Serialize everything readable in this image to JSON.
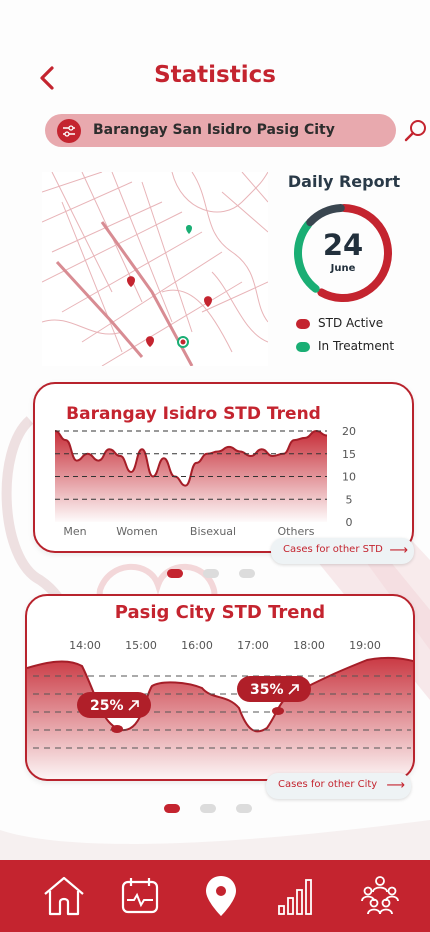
{
  "header": {
    "title": "Statistics"
  },
  "search": {
    "location": "Barangay San Isidro Pasig City"
  },
  "daily_report": {
    "title": "Daily Report",
    "day": "24",
    "month": "June",
    "std_active_fraction": 0.58,
    "legend": [
      {
        "label": "STD Active",
        "color": "#c4242f"
      },
      {
        "label": "In Treatment",
        "color": "#1aae74"
      }
    ]
  },
  "cards": {
    "barangay": {
      "title": "Barangay Isidro STD Trend",
      "categories": [
        "Men",
        "Women",
        "Bisexual",
        "Others"
      ],
      "more_label": "Cases for other STD"
    },
    "city": {
      "title": "Pasig City STD Trend",
      "more_label": "Cases for other City",
      "badges": [
        {
          "text": "25%",
          "at": "15:00"
        },
        {
          "text": "35%",
          "at": "17:30"
        }
      ]
    }
  },
  "chart_data": [
    {
      "type": "area",
      "title": "Barangay Isidro STD Trend",
      "categories": [
        "Men",
        "Women",
        "Bisexual",
        "Others"
      ],
      "yticks": [
        0,
        5,
        10,
        15,
        20
      ],
      "ylim": [
        0,
        20
      ],
      "x": [
        0,
        0.04,
        0.08,
        0.12,
        0.16,
        0.2,
        0.24,
        0.28,
        0.32,
        0.36,
        0.4,
        0.44,
        0.48,
        0.52,
        0.56,
        0.6,
        0.64,
        0.68,
        0.72,
        0.76,
        0.8,
        0.84,
        0.88,
        0.92,
        0.96,
        1
      ],
      "values": [
        20,
        18,
        13.5,
        15,
        13.5,
        16,
        14.5,
        11,
        16,
        10,
        14,
        10,
        8,
        13,
        15,
        15.5,
        16.5,
        15.5,
        14.5,
        16,
        14.5,
        15,
        18,
        18.5,
        20,
        19
      ],
      "grid": true
    },
    {
      "type": "area",
      "title": "Pasig City STD Trend",
      "x": [
        "14:00",
        "15:00",
        "16:00",
        "17:00",
        "18:00",
        "19:00"
      ],
      "grid": true
    }
  ]
}
